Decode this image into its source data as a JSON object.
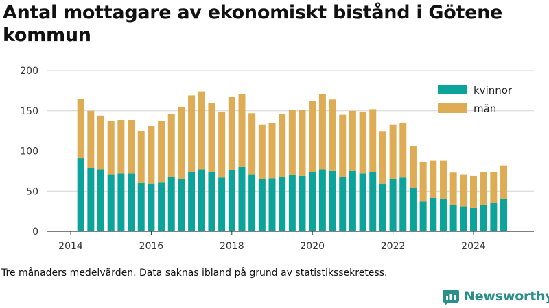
{
  "title": "Antal mottagare av ekonomiskt bistånd i Götene kommun",
  "caption": "Tre månaders medelvärden. Data saknas ibland på grund av statistikssekretess.",
  "brand": {
    "name": "Newsworthy",
    "logo_icon": "newsworthy-logo-icon"
  },
  "colors": {
    "kvinnor": "#0ba39a",
    "man": "#ddac55",
    "axis": "#333333",
    "grid": "#d4d4d4"
  },
  "chart_data": {
    "type": "bar",
    "stacked": true,
    "x_ticks": [
      "2014",
      "2016",
      "2018",
      "2020",
      "2022",
      "2024"
    ],
    "y_ticks": [
      "0",
      "50",
      "100",
      "150",
      "200"
    ],
    "ylim": [
      0,
      200
    ],
    "xlim": [
      2014.0,
      2025.33
    ],
    "grid": "horizontal",
    "legend_position": "top-right",
    "categories": [
      "2014 Q2",
      "2014 Q3",
      "2014 Q4",
      "2015 Q1",
      "2015 Q2",
      "2015 Q3",
      "2015 Q4",
      "2016 Q1",
      "2016 Q2",
      "2016 Q3",
      "2016 Q4",
      "2017 Q1",
      "2017 Q2",
      "2017 Q3",
      "2017 Q4",
      "2018 Q1",
      "2018 Q2",
      "2018 Q3",
      "2018 Q4",
      "2019 Q1",
      "2019 Q2",
      "2019 Q3",
      "2019 Q4",
      "2020 Q1",
      "2020 Q2",
      "2020 Q3",
      "2020 Q4",
      "2021 Q1",
      "2021 Q2",
      "2021 Q3",
      "2021 Q4",
      "2022 Q1",
      "2022 Q2",
      "2022 Q3",
      "2022 Q4",
      "2023 Q1",
      "2023 Q2",
      "2023 Q3",
      "2023 Q4",
      "2024 Q1",
      "2024 Q2",
      "2024 Q3",
      "2024 Q4"
    ],
    "series": [
      {
        "name": "kvinnor",
        "values": [
          91,
          79,
          77,
          71,
          72,
          72,
          60,
          59,
          61,
          68,
          65,
          74,
          77,
          74,
          67,
          76,
          80,
          71,
          65,
          66,
          68,
          70,
          69,
          74,
          77,
          75,
          68,
          75,
          72,
          74,
          59,
          65,
          67,
          54,
          37,
          41,
          40,
          33,
          31,
          29,
          33,
          35,
          40
        ]
      },
      {
        "name": "män",
        "values": [
          74,
          71,
          67,
          66,
          66,
          66,
          65,
          72,
          76,
          78,
          90,
          95,
          97,
          86,
          82,
          91,
          91,
          76,
          68,
          69,
          78,
          81,
          82,
          88,
          94,
          89,
          77,
          75,
          77,
          78,
          65,
          68,
          68,
          52,
          49,
          47,
          48,
          40,
          40,
          40,
          41,
          39,
          42
        ]
      }
    ]
  }
}
